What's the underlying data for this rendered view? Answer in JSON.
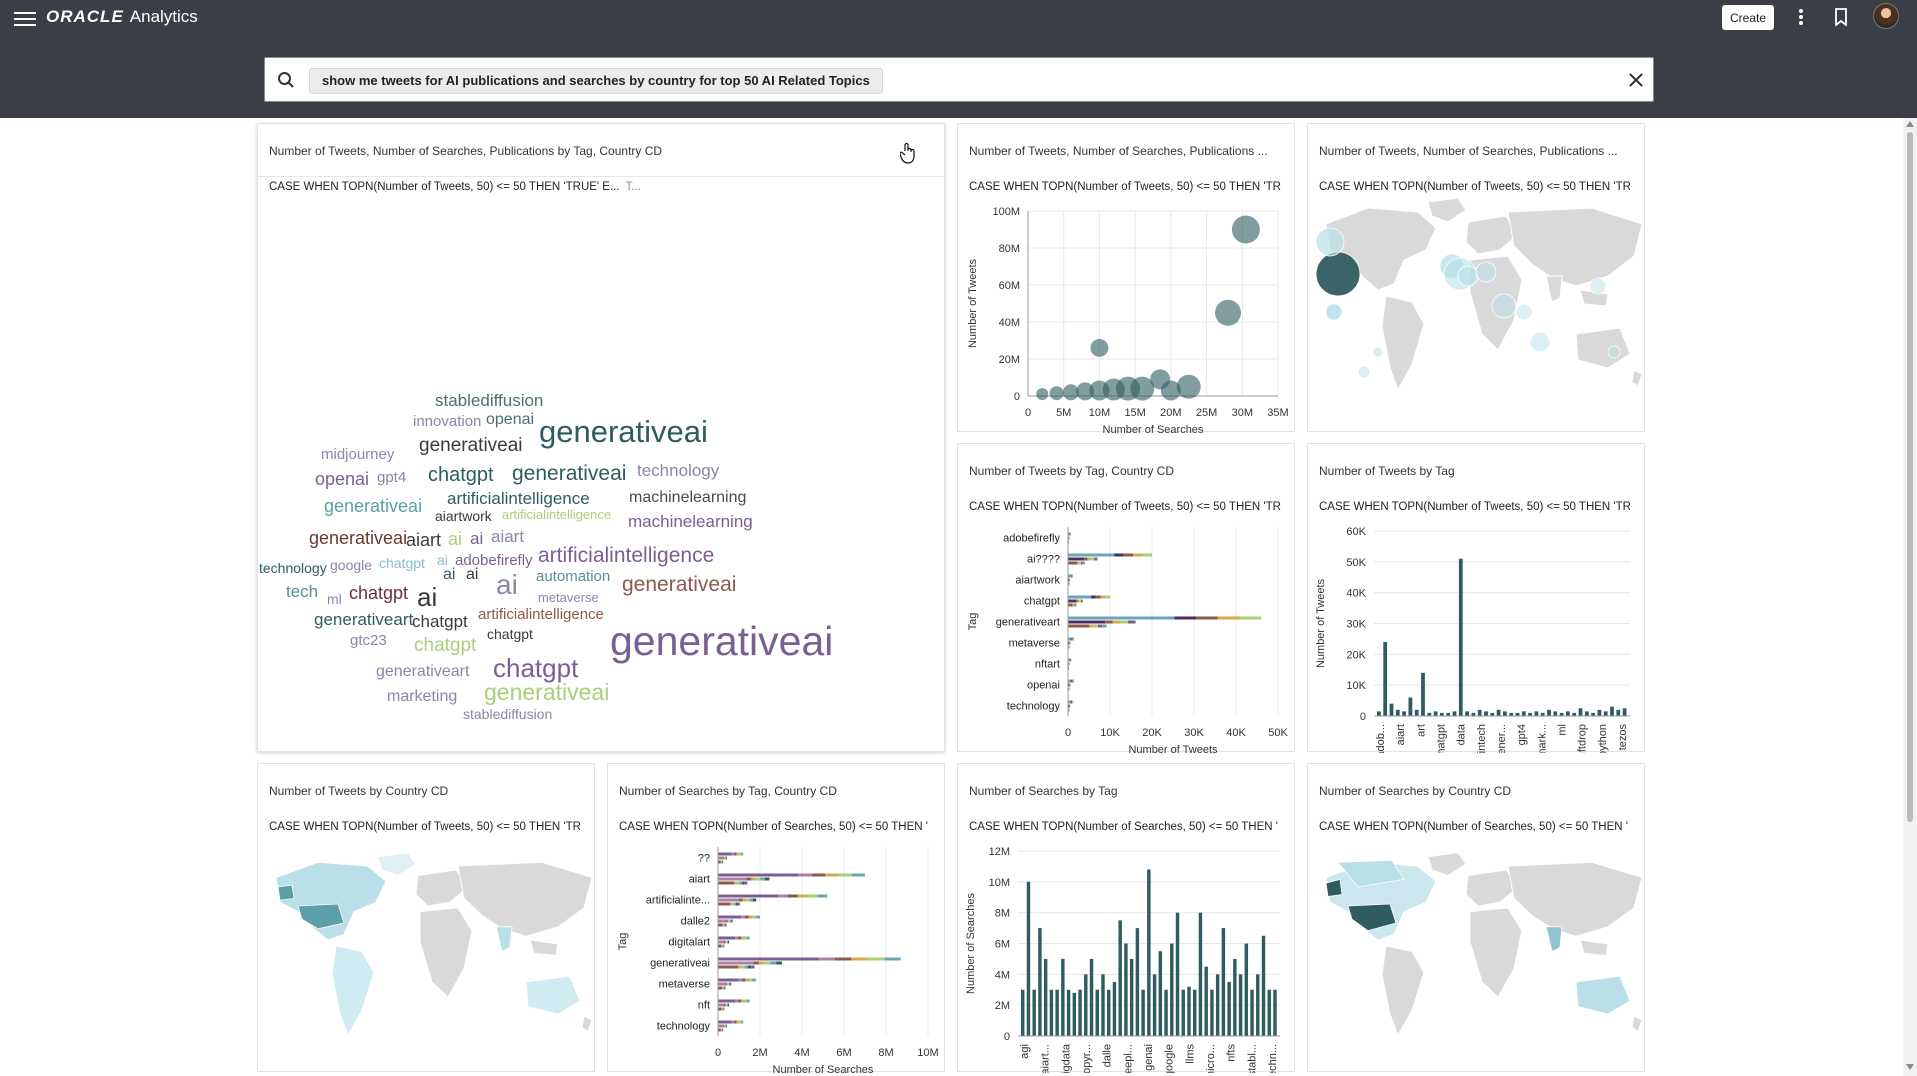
{
  "app": {
    "brand": "ORACLE",
    "product": "Analytics",
    "create_label": "Create"
  },
  "search": {
    "query": "show me tweets for AI publications and searches by country for top 50 AI Related Topics"
  },
  "colors": {
    "topbar": "#3b3f45",
    "teal_dark": "#2f5c5f",
    "teal_mid": "#5a8e92",
    "teal_light": "#b9e0e8",
    "map_land": "#d9d9d9",
    "purple": "#7a5f95"
  },
  "tiles": {
    "wordcloud": {
      "title": "Number of Tweets, Number of Searches, Publications by Tag, Country CD",
      "filter": "CASE WHEN TOPN(Number of Tweets, 50) <= 50 THEN 'TRUE' E...",
      "filter_more": "T...",
      "words": [
        {
          "t": "stablediffusion",
          "c": "#4b6f72"
        },
        {
          "t": "innovation",
          "c": "#8d84a8"
        },
        {
          "t": "openai",
          "c": "#4b6f72"
        },
        {
          "t": "generativeai",
          "c": "#2f5c5f"
        },
        {
          "t": "midjourney",
          "c": "#8d84a8"
        },
        {
          "t": "generativeai",
          "c": "#3a3a3a"
        },
        {
          "t": "openai",
          "c": "#7a5f95"
        },
        {
          "t": "gpt4",
          "c": "#8d84a8"
        },
        {
          "t": "chatgpt",
          "c": "#2f5c5f"
        },
        {
          "t": "generativeai",
          "c": "#2f5c5f"
        },
        {
          "t": "technology",
          "c": "#8d84a8"
        },
        {
          "t": "generativeai",
          "c": "#5aa0a6"
        },
        {
          "t": "artificialintelligence",
          "c": "#2f5c5f"
        },
        {
          "t": "machinelearning",
          "c": "#4b4b4b"
        },
        {
          "t": "aiartwork",
          "c": "#3a3a3a"
        },
        {
          "t": "artificialintelligence",
          "c": "#a9cf7a"
        },
        {
          "t": "machinelearning",
          "c": "#7a5f95"
        },
        {
          "t": "generativeai",
          "c": "#6b3a2f"
        },
        {
          "t": "aiart",
          "c": "#3a3a3a"
        },
        {
          "t": "ai",
          "c": "#a9cf7a"
        },
        {
          "t": "ai",
          "c": "#7a5f95"
        },
        {
          "t": "aiart",
          "c": "#8d84a8"
        },
        {
          "t": "artificialintelligence",
          "c": "#7a5f95"
        },
        {
          "t": "technology",
          "c": "#2f5c5f"
        },
        {
          "t": "google",
          "c": "#8d84a8"
        },
        {
          "t": "chatgpt",
          "c": "#8fb8cf"
        },
        {
          "t": "ai",
          "c": "#8fb8cf"
        },
        {
          "t": "adobefirefly",
          "c": "#7a5f95"
        },
        {
          "t": "tech",
          "c": "#5a8e92"
        },
        {
          "t": "ml",
          "c": "#8d84a8"
        },
        {
          "t": "chatgpt",
          "c": "#6b2f3f"
        },
        {
          "t": "ai",
          "c": "#3a3a3a"
        },
        {
          "t": "ai",
          "c": "#2f5c5f"
        },
        {
          "t": "ai",
          "c": "#3a3a3a"
        },
        {
          "t": "ai",
          "c": "#8d84a8"
        },
        {
          "t": "automation",
          "c": "#5a8e92"
        },
        {
          "t": "generativeai",
          "c": "#8a5a4a"
        },
        {
          "t": "metaverse",
          "c": "#8d84a8"
        },
        {
          "t": "generativeart",
          "c": "#2f5c5f"
        },
        {
          "t": "chatgpt",
          "c": "#3a3a3a"
        },
        {
          "t": "artificialintelligence",
          "c": "#8a5a4a"
        },
        {
          "t": "generativeai",
          "c": "#7a5f95"
        },
        {
          "t": "gtc23",
          "c": "#8d84a8"
        },
        {
          "t": "chatgpt",
          "c": "#a9cf7a"
        },
        {
          "t": "chatgpt",
          "c": "#3a3a3a"
        },
        {
          "t": "chatgpt",
          "c": "#7a5f95"
        },
        {
          "t": "generativeart",
          "c": "#8d84a8"
        },
        {
          "t": "marketing",
          "c": "#8d84a8"
        },
        {
          "t": "generativeai",
          "c": "#a9cf7a"
        },
        {
          "t": "stablediffusion",
          "c": "#8d84a8"
        }
      ]
    },
    "scatter": {
      "title": "Number of Tweets, Number of Searches, Publications ...",
      "filter": "CASE WHEN TOPN(Number of Tweets, 50) <= 50 THEN 'TR",
      "chart_data": {
        "type": "scatter",
        "xlabel": "Number of Searches",
        "ylabel": "Number of Tweets",
        "xlim": [
          0,
          35000000
        ],
        "ylim": [
          0,
          100000000
        ],
        "xticks": [
          "0",
          "5M",
          "10M",
          "15M",
          "20M",
          "25M",
          "30M",
          "35M"
        ],
        "yticks": [
          "0",
          "20M",
          "40M",
          "60M",
          "80M",
          "100M"
        ],
        "points": [
          {
            "x": 30500000,
            "y": 90000000,
            "s": 14
          },
          {
            "x": 28000000,
            "y": 45000000,
            "s": 13
          },
          {
            "x": 10000000,
            "y": 26000000,
            "s": 9
          },
          {
            "x": 22500000,
            "y": 5000000,
            "s": 12
          },
          {
            "x": 18500000,
            "y": 9000000,
            "s": 10
          },
          {
            "x": 16000000,
            "y": 4000000,
            "s": 12
          },
          {
            "x": 14000000,
            "y": 4000000,
            "s": 12
          },
          {
            "x": 12000000,
            "y": 3500000,
            "s": 11
          },
          {
            "x": 10000000,
            "y": 3000000,
            "s": 10
          },
          {
            "x": 8000000,
            "y": 2500000,
            "s": 9
          },
          {
            "x": 6000000,
            "y": 2000000,
            "s": 8
          },
          {
            "x": 4000000,
            "y": 1500000,
            "s": 7
          },
          {
            "x": 2000000,
            "y": 1000000,
            "s": 6
          },
          {
            "x": 20000000,
            "y": 3000000,
            "s": 10
          }
        ]
      }
    },
    "map_top": {
      "title": "Number of Tweets, Number of Searches, Publications ...",
      "filter": "CASE WHEN TOPN(Number of Tweets, 50) <= 50 THEN 'TR"
    },
    "tweets_tag_country": {
      "title": "Number of Tweets by Tag, Country CD",
      "filter": "CASE WHEN TOPN(Number of Tweets, 50) <= 50 THEN 'TR",
      "chart_data": {
        "type": "bar",
        "orientation": "horizontal",
        "xlabel": "Number of Tweets",
        "ylabel": "Tag",
        "xlim": [
          0,
          50000
        ],
        "xticks": [
          "0",
          "10K",
          "20K",
          "30K",
          "40K",
          "50K"
        ],
        "categories": [
          "adobefirefly",
          "ai????",
          "aiartwork",
          "chatgpt",
          "generativeart",
          "metaverse",
          "nftart",
          "openai",
          "technology"
        ],
        "values": [
          700,
          20000,
          1200,
          10000,
          46000,
          1500,
          800,
          1500,
          1300
        ]
      }
    },
    "tweets_tag": {
      "title": "Number of Tweets by Tag",
      "filter": "CASE WHEN TOPN(Number of Tweets, 50) <= 50 THEN 'TR",
      "chart_data": {
        "type": "bar",
        "xlabel": "Tag",
        "ylabel": "Number of Tweets",
        "ylim": [
          0,
          60000
        ],
        "yticks": [
          "0",
          "10K",
          "20K",
          "30K",
          "40K",
          "50K",
          "60K"
        ],
        "xticklabels": [
          "adob...",
          "aiart",
          "art",
          "chatgpt",
          "data",
          "fintech",
          "gener...",
          "gpt4",
          "mark...",
          "ml",
          "nftdrop",
          "python",
          "tezos"
        ],
        "values": [
          1500,
          24000,
          4000,
          2000,
          1500,
          6000,
          2000,
          14000,
          1000,
          1500,
          1000,
          1000,
          1500,
          51000,
          1500,
          1000,
          2000,
          1500,
          1000,
          2000,
          1500,
          1000,
          1000,
          1500,
          1000,
          1500,
          1000,
          2000,
          1500,
          1000,
          1500,
          1000,
          2500,
          1500,
          1000,
          2000,
          1500,
          3000,
          2000,
          2500
        ]
      }
    },
    "tweets_country": {
      "title": "Number of Tweets by Country CD",
      "filter": "CASE WHEN TOPN(Number of Tweets, 50) <= 50 THEN 'TR"
    },
    "searches_tag_country": {
      "title": "Number of Searches by Tag, Country CD",
      "filter": "CASE WHEN TOPN(Number of Searches, 50) <= 50 THEN '",
      "chart_data": {
        "type": "bar",
        "orientation": "horizontal",
        "xlabel": "Number of Searches",
        "ylabel": "Tag",
        "xlim": [
          0,
          10000000
        ],
        "xticks": [
          "0",
          "2M",
          "4M",
          "6M",
          "8M",
          "10M"
        ],
        "categories": [
          "??",
          "aiart",
          "artificialinte...",
          "dalle2",
          "digitalart",
          "generativeai",
          "metaverse",
          "nft",
          "technology"
        ],
        "values": [
          1200000,
          7000000,
          5200000,
          2000000,
          1500000,
          8700000,
          1800000,
          1500000,
          1200000
        ]
      }
    },
    "searches_tag": {
      "title": "Number of Searches by Tag",
      "filter": "CASE WHEN TOPN(Number of Searches, 50) <= 50 THEN '",
      "chart_data": {
        "type": "bar",
        "xlabel": "Tag",
        "ylabel": "Number of Searches",
        "ylim": [
          0,
          12000000
        ],
        "yticks": [
          "0",
          "2M",
          "4M",
          "6M",
          "8M",
          "10M",
          "12M"
        ],
        "xticklabels": [
          "agi",
          "aiart...",
          "bigdata",
          "copyr...",
          "dalle",
          "deepl...",
          "genai",
          "google",
          "llms",
          "micro...",
          "nfts",
          "stabl...",
          "techn..."
        ],
        "values": [
          3000000,
          10000000,
          3000000,
          7000000,
          5000000,
          3000000,
          3000000,
          5000000,
          3000000,
          2800000,
          3000000,
          4000000,
          5000000,
          3000000,
          4000000,
          3000000,
          3500000,
          7500000,
          6000000,
          5000000,
          7000000,
          3000000,
          10800000,
          4000000,
          5500000,
          3000000,
          6000000,
          8000000,
          3000000,
          3200000,
          3000000,
          8000000,
          4500000,
          3000000,
          4000000,
          7000000,
          3500000,
          5000000,
          4000000,
          6000000,
          3000000,
          4000000,
          6500000,
          3000000,
          3000000
        ]
      }
    },
    "searches_country": {
      "title": "Number of Searches by Country CD",
      "filter": "CASE WHEN TOPN(Number of Searches, 50) <= 50 THEN '"
    }
  }
}
